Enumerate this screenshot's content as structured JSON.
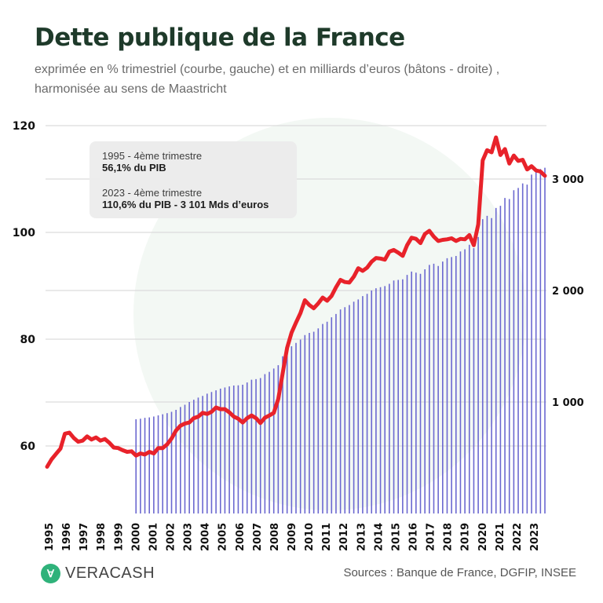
{
  "title": "Dette publique de la France",
  "subtitle_line1": "exprimée en % trimestriel (courbe, gauche) et en milliards d’euros (bâtons - droite) ,",
  "subtitle_line2": "harmonisée au sens de Maastricht",
  "annotation": {
    "first_period": "1995 - 4ème trimestre",
    "first_value": "56,1% du PIB",
    "last_period": "2023 - 4ème trimestre",
    "last_value": "110,6% du PIB - 3 101 Mds d’euros"
  },
  "logo_text": "VERACASH",
  "source": "Sources : Banque de France, DGFIP, INSEE",
  "chart_data": {
    "type": "bar+line",
    "colors": {
      "line": "#e8222a",
      "bars": "#6b68d0",
      "title": "#1e3a2a"
    },
    "x_ticks": [
      "1995",
      "1996",
      "1997",
      "1998",
      "1999",
      "2000",
      "2001",
      "2002",
      "2003",
      "2004",
      "2005",
      "2006",
      "2007",
      "2008",
      "2009",
      "2010",
      "2011",
      "2012",
      "2013",
      "2014",
      "2015",
      "2016",
      "2017",
      "2018",
      "2019",
      "2020",
      "2021",
      "2022",
      "2023"
    ],
    "left_axis": {
      "ticks": [
        "60",
        "80",
        "100",
        "120"
      ],
      "tick_values": [
        60,
        80,
        100,
        120
      ],
      "range": [
        48.5,
        120
      ]
    },
    "right_axis": {
      "ticks": [
        "1 000",
        "2 000",
        "3 000"
      ],
      "tick_values": [
        1000,
        2000,
        3000
      ],
      "range": [
        0,
        3500
      ]
    },
    "grid": true,
    "line_series": {
      "start": "1995 Q4",
      "frequency": "quarterly",
      "unit": "% du PIB",
      "values": [
        56.1,
        57.5,
        58.5,
        59.5,
        62.3,
        62.5,
        61.5,
        60.8,
        61.0,
        61.8,
        61.2,
        61.6,
        61.0,
        61.3,
        60.6,
        59.7,
        59.6,
        59.2,
        58.9,
        59.0,
        58.2,
        58.6,
        58.4,
        58.9,
        58.6,
        59.6,
        59.6,
        60.3,
        61.4,
        62.9,
        63.8,
        64.2,
        64.4,
        65.2,
        65.5,
        66.2,
        66.0,
        66.4,
        67.2,
        66.9,
        66.9,
        66.3,
        65.5,
        65.1,
        64.4,
        65.2,
        65.7,
        65.2,
        64.3,
        65.3,
        65.7,
        66.2,
        68.8,
        73.6,
        78.4,
        81.2,
        83.1,
        84.9,
        87.3,
        86.4,
        85.8,
        86.7,
        87.8,
        87.2,
        88.1,
        89.7,
        91.1,
        90.7,
        90.6,
        91.7,
        93.3,
        92.8,
        93.4,
        94.5,
        95.2,
        95.1,
        94.9,
        96.4,
        96.7,
        96.2,
        95.6,
        97.6,
        99.0,
        98.8,
        98.0,
        99.7,
        100.3,
        99.2,
        98.4,
        98.6,
        98.7,
        98.9,
        98.4,
        98.8,
        98.7,
        99.5,
        97.6,
        101.5,
        113.5,
        115.4,
        115.0,
        117.8,
        114.5,
        115.6,
        112.9,
        114.4,
        113.4,
        113.6,
        111.8,
        112.4,
        111.6,
        111.4,
        110.6
      ]
    },
    "bar_series": {
      "start": "2000 Q4",
      "frequency": "quarterly",
      "unit": "Mds d’euros",
      "values": [
        845,
        850,
        858,
        862,
        870,
        880,
        890,
        900,
        912,
        930,
        955,
        975,
        1000,
        1020,
        1040,
        1055,
        1075,
        1090,
        1105,
        1120,
        1130,
        1140,
        1148,
        1150,
        1155,
        1175,
        1200,
        1205,
        1215,
        1250,
        1270,
        1300,
        1330,
        1410,
        1460,
        1500,
        1530,
        1560,
        1600,
        1620,
        1630,
        1660,
        1700,
        1720,
        1760,
        1790,
        1830,
        1850,
        1870,
        1900,
        1920,
        1950,
        1970,
        2000,
        2020,
        2030,
        2040,
        2060,
        2090,
        2095,
        2100,
        2140,
        2170,
        2160,
        2150,
        2190,
        2230,
        2240,
        2220,
        2260,
        2290,
        2300,
        2310,
        2350,
        2370,
        2410,
        2380,
        2480,
        2640,
        2670,
        2650,
        2740,
        2760,
        2830,
        2820,
        2900,
        2920,
        2960,
        2950,
        3040,
        3060,
        3090,
        3101
      ]
    }
  }
}
